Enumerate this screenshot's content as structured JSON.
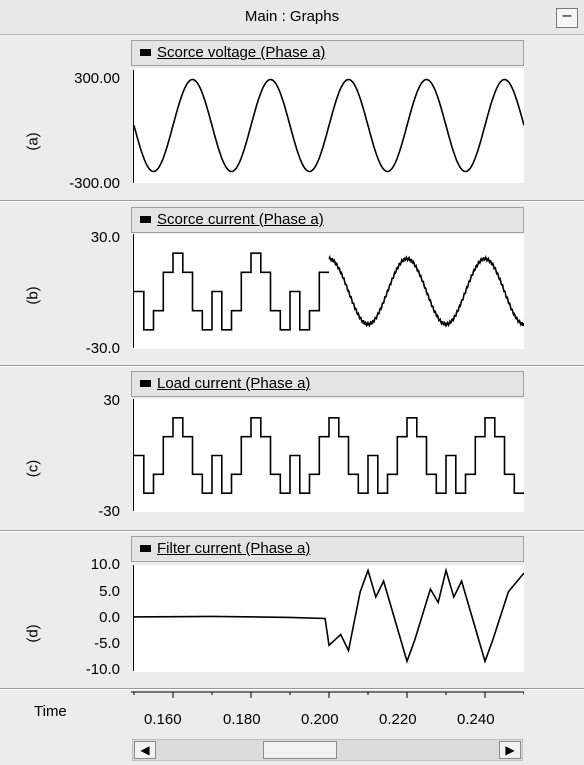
{
  "window": {
    "title": "Main : Graphs",
    "minimize_label": "–"
  },
  "graphs": [
    {
      "row_label": "(a)",
      "title": "Scorce voltage (Phase a)",
      "ytick_top": "300.00",
      "ytick_bottom": "-300.00"
    },
    {
      "row_label": "(b)",
      "title": "Scorce current (Phase a)",
      "ytick_top": "30.0",
      "ytick_bottom": "-30.0"
    },
    {
      "row_label": "(c)",
      "title": "Load current (Phase a)",
      "ytick_top": "30",
      "ytick_bottom": "-30"
    },
    {
      "row_label": "(d)",
      "title": "Filter current (Phase a)",
      "yticks": [
        "10.0",
        "5.0",
        "0.0",
        "-5.0",
        "-10.0"
      ]
    }
  ],
  "xaxis": {
    "label": "Time",
    "ticks": [
      "0.160",
      "0.180",
      "0.200",
      "0.220",
      "0.240"
    ]
  },
  "scrollbar": {
    "left_arrow": "◀",
    "right_arrow": "▶"
  },
  "chart_data": [
    {
      "type": "line",
      "title": "Scorce voltage (Phase a)",
      "ylim": [
        -300,
        300
      ],
      "xlim": [
        0.15,
        0.25
      ],
      "waveform": "sine",
      "frequency_hz": 50,
      "amplitude": 240,
      "x": [
        0.15,
        0.155,
        0.16,
        0.165,
        0.17,
        0.175,
        0.18
      ],
      "y": [
        0,
        -240,
        0,
        240,
        0,
        -240,
        0
      ]
    },
    {
      "type": "line",
      "title": "Scorce current (Phase a)",
      "ylim": [
        -30,
        30
      ],
      "xlim": [
        0.15,
        0.25
      ],
      "note_segments": [
        "stepped six-pulse before 0.200",
        "sinusoidal after 0.200"
      ],
      "step_levels": [
        0,
        -20,
        -10,
        10,
        20,
        10,
        -10,
        -20
      ],
      "sine_amplitude": 18
    },
    {
      "type": "line",
      "title": "Load current (Phase a)",
      "ylim": [
        -30,
        30
      ],
      "xlim": [
        0.15,
        0.25
      ],
      "step_levels": [
        0,
        -20,
        -10,
        10,
        20,
        10,
        -10,
        -20
      ]
    },
    {
      "type": "line",
      "title": "Filter current (Phase a)",
      "ylim": [
        -10,
        10
      ],
      "xlim": [
        0.15,
        0.25
      ],
      "x": [
        0.15,
        0.17,
        0.19,
        0.199,
        0.2,
        0.203,
        0.205,
        0.208,
        0.21,
        0.212,
        0.214,
        0.218,
        0.22,
        0.222,
        0.226,
        0.228,
        0.23,
        0.232,
        0.234,
        0.238,
        0.24,
        0.242,
        0.246,
        0.25
      ],
      "y": [
        0.3,
        0.4,
        0.2,
        0.0,
        -5.0,
        -3.0,
        -6.0,
        5.0,
        9.0,
        4.0,
        7.0,
        -3.0,
        -8.0,
        -4.0,
        5.5,
        3.0,
        9.0,
        4.0,
        7.0,
        -3.0,
        -8.0,
        -4.0,
        5.0,
        8.5
      ]
    }
  ]
}
